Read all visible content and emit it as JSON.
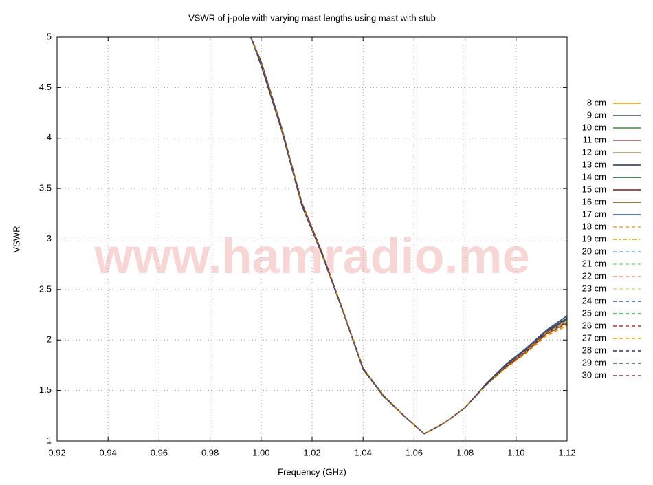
{
  "chart_data": {
    "type": "line",
    "title": "VSWR of j-pole with varying mast lengths using mast with stub",
    "x_label": "Frequency (GHz)",
    "y_label": "VSWR",
    "watermark": "www.hamradio.me",
    "xlim": [
      0.92,
      1.12
    ],
    "ylim": [
      1,
      5
    ],
    "xticks": [
      0.92,
      0.94,
      0.96,
      0.98,
      {
        "value": 1.0,
        "label": "1.00"
      },
      1.02,
      1.04,
      1.06,
      1.08,
      {
        "value": 1.1,
        "label": "1.10"
      },
      1.12
    ],
    "yticks": [
      1,
      1.5,
      2,
      2.5,
      3,
      3.5,
      4,
      4.5,
      5
    ],
    "grid": true,
    "legend": "right",
    "x": [
      0.996,
      1.0,
      1.008,
      1.016,
      1.024,
      1.032,
      1.04,
      1.048,
      1.056,
      1.064,
      1.072,
      1.08,
      1.088,
      1.096,
      1.104,
      1.112,
      1.12
    ],
    "series": [
      {
        "name": "8 cm",
        "color": "#e69f00",
        "style": "solid",
        "values": [
          5.0,
          4.75,
          4.1,
          3.35,
          2.85,
          2.3,
          1.72,
          1.45,
          1.25,
          1.07,
          1.18,
          1.33,
          1.55,
          1.74,
          1.9,
          2.08,
          2.2
        ]
      },
      {
        "name": "9 cm",
        "color": "#3d4a5c",
        "style": "solid",
        "values": [
          5.0,
          4.72,
          4.08,
          3.33,
          2.84,
          2.29,
          1.71,
          1.44,
          1.25,
          1.07,
          1.18,
          1.33,
          1.56,
          1.76,
          1.92,
          2.1,
          2.24
        ]
      },
      {
        "name": "10 cm",
        "color": "#3a8a3a",
        "style": "solid",
        "values": [
          5.0,
          4.75,
          4.1,
          3.35,
          2.85,
          2.3,
          1.72,
          1.45,
          1.25,
          1.07,
          1.18,
          1.33,
          1.55,
          1.74,
          1.9,
          2.08,
          2.2
        ]
      },
      {
        "name": "11 cm",
        "color": "#a0524f",
        "style": "solid",
        "values": [
          5.0,
          4.76,
          4.11,
          3.36,
          2.86,
          2.3,
          1.72,
          1.45,
          1.25,
          1.07,
          1.18,
          1.33,
          1.55,
          1.73,
          1.88,
          2.06,
          2.17
        ]
      },
      {
        "name": "12 cm",
        "color": "#a08a60",
        "style": "solid",
        "values": [
          5.0,
          4.75,
          4.1,
          3.35,
          2.85,
          2.3,
          1.72,
          1.45,
          1.25,
          1.07,
          1.18,
          1.33,
          1.55,
          1.74,
          1.9,
          2.08,
          2.2
        ]
      },
      {
        "name": "13 cm",
        "color": "#1a2a5a",
        "style": "solid",
        "values": [
          5.0,
          4.73,
          4.09,
          3.34,
          2.84,
          2.29,
          1.71,
          1.45,
          1.25,
          1.07,
          1.18,
          1.33,
          1.56,
          1.75,
          1.91,
          2.09,
          2.22
        ]
      },
      {
        "name": "14 cm",
        "color": "#1a5a2a",
        "style": "solid",
        "values": [
          5.0,
          4.75,
          4.1,
          3.35,
          2.85,
          2.3,
          1.72,
          1.45,
          1.25,
          1.07,
          1.18,
          1.33,
          1.55,
          1.74,
          1.9,
          2.08,
          2.2
        ]
      },
      {
        "name": "15 cm",
        "color": "#7a1a1a",
        "style": "solid",
        "values": [
          5.0,
          4.76,
          4.11,
          3.36,
          2.86,
          2.3,
          1.72,
          1.45,
          1.25,
          1.07,
          1.18,
          1.33,
          1.55,
          1.73,
          1.89,
          2.07,
          2.18
        ]
      },
      {
        "name": "16 cm",
        "color": "#6a4a1a",
        "style": "solid",
        "values": [
          5.0,
          4.75,
          4.1,
          3.35,
          2.85,
          2.3,
          1.72,
          1.45,
          1.25,
          1.07,
          1.18,
          1.33,
          1.55,
          1.74,
          1.9,
          2.08,
          2.2
        ]
      },
      {
        "name": "17 cm",
        "color": "#2a4aa0",
        "style": "solid",
        "values": [
          5.0,
          4.74,
          4.1,
          3.35,
          2.85,
          2.3,
          1.72,
          1.45,
          1.25,
          1.07,
          1.18,
          1.33,
          1.55,
          1.75,
          1.91,
          2.09,
          2.21
        ]
      },
      {
        "name": "18 cm",
        "color": "#f0a020",
        "style": "dashed",
        "values": [
          5.0,
          4.75,
          4.1,
          3.35,
          2.85,
          2.3,
          1.72,
          1.45,
          1.25,
          1.07,
          1.18,
          1.33,
          1.55,
          1.72,
          1.87,
          2.04,
          2.14
        ]
      },
      {
        "name": "19 cm",
        "color": "#d0a000",
        "style": "dashdot",
        "values": [
          5.0,
          4.75,
          4.1,
          3.35,
          2.85,
          2.3,
          1.72,
          1.45,
          1.25,
          1.07,
          1.18,
          1.33,
          1.55,
          1.74,
          1.9,
          2.08,
          2.2
        ]
      },
      {
        "name": "20 cm",
        "color": "#70a8e0",
        "style": "dashed",
        "values": [
          5.0,
          4.75,
          4.1,
          3.35,
          2.85,
          2.3,
          1.72,
          1.45,
          1.25,
          1.07,
          1.18,
          1.33,
          1.55,
          1.74,
          1.9,
          2.08,
          2.2
        ]
      },
      {
        "name": "21 cm",
        "color": "#80e080",
        "style": "dashed",
        "values": [
          5.0,
          4.75,
          4.1,
          3.35,
          2.85,
          2.3,
          1.72,
          1.45,
          1.25,
          1.07,
          1.18,
          1.33,
          1.55,
          1.73,
          1.89,
          2.07,
          2.18
        ]
      },
      {
        "name": "22 cm",
        "color": "#f09080",
        "style": "dashed",
        "values": [
          5.0,
          4.75,
          4.1,
          3.35,
          2.85,
          2.3,
          1.72,
          1.45,
          1.25,
          1.07,
          1.18,
          1.33,
          1.55,
          1.74,
          1.9,
          2.08,
          2.2
        ]
      },
      {
        "name": "23 cm",
        "color": "#f0d080",
        "style": "dashed",
        "values": [
          5.0,
          4.75,
          4.1,
          3.35,
          2.85,
          2.3,
          1.72,
          1.45,
          1.25,
          1.07,
          1.18,
          1.33,
          1.55,
          1.74,
          1.9,
          2.08,
          2.2
        ]
      },
      {
        "name": "24 cm",
        "color": "#2a5aa0",
        "style": "dashed",
        "values": [
          5.0,
          4.74,
          4.1,
          3.35,
          2.85,
          2.3,
          1.72,
          1.45,
          1.25,
          1.07,
          1.18,
          1.33,
          1.55,
          1.75,
          1.91,
          2.09,
          2.22
        ]
      },
      {
        "name": "25 cm",
        "color": "#30a040",
        "style": "dashed",
        "values": [
          5.0,
          4.75,
          4.1,
          3.35,
          2.85,
          2.3,
          1.72,
          1.45,
          1.25,
          1.07,
          1.18,
          1.33,
          1.55,
          1.74,
          1.9,
          2.08,
          2.2
        ]
      },
      {
        "name": "26 cm",
        "color": "#c03030",
        "style": "dashed",
        "values": [
          5.0,
          4.75,
          4.1,
          3.35,
          2.85,
          2.3,
          1.72,
          1.45,
          1.25,
          1.07,
          1.18,
          1.33,
          1.55,
          1.73,
          1.88,
          2.06,
          2.16
        ]
      },
      {
        "name": "27 cm",
        "color": "#e0a000",
        "style": "dashed",
        "values": [
          5.0,
          4.75,
          4.1,
          3.35,
          2.85,
          2.3,
          1.72,
          1.45,
          1.25,
          1.07,
          1.18,
          1.33,
          1.55,
          1.72,
          1.87,
          2.05,
          2.15
        ]
      },
      {
        "name": "28 cm",
        "color": "#303070",
        "style": "dashed",
        "values": [
          5.0,
          4.75,
          4.1,
          3.35,
          2.85,
          2.3,
          1.72,
          1.45,
          1.25,
          1.07,
          1.18,
          1.33,
          1.55,
          1.74,
          1.9,
          2.08,
          2.2
        ]
      },
      {
        "name": "29 cm",
        "color": "#306040",
        "style": "dashed",
        "values": [
          5.0,
          4.75,
          4.1,
          3.35,
          2.85,
          2.3,
          1.72,
          1.45,
          1.25,
          1.07,
          1.18,
          1.33,
          1.55,
          1.74,
          1.9,
          2.08,
          2.21
        ]
      },
      {
        "name": "30 cm",
        "color": "#804040",
        "style": "dashed",
        "values": [
          5.0,
          4.75,
          4.1,
          3.35,
          2.85,
          2.3,
          1.72,
          1.45,
          1.25,
          1.07,
          1.18,
          1.33,
          1.55,
          1.74,
          1.9,
          2.08,
          2.2
        ]
      }
    ]
  }
}
